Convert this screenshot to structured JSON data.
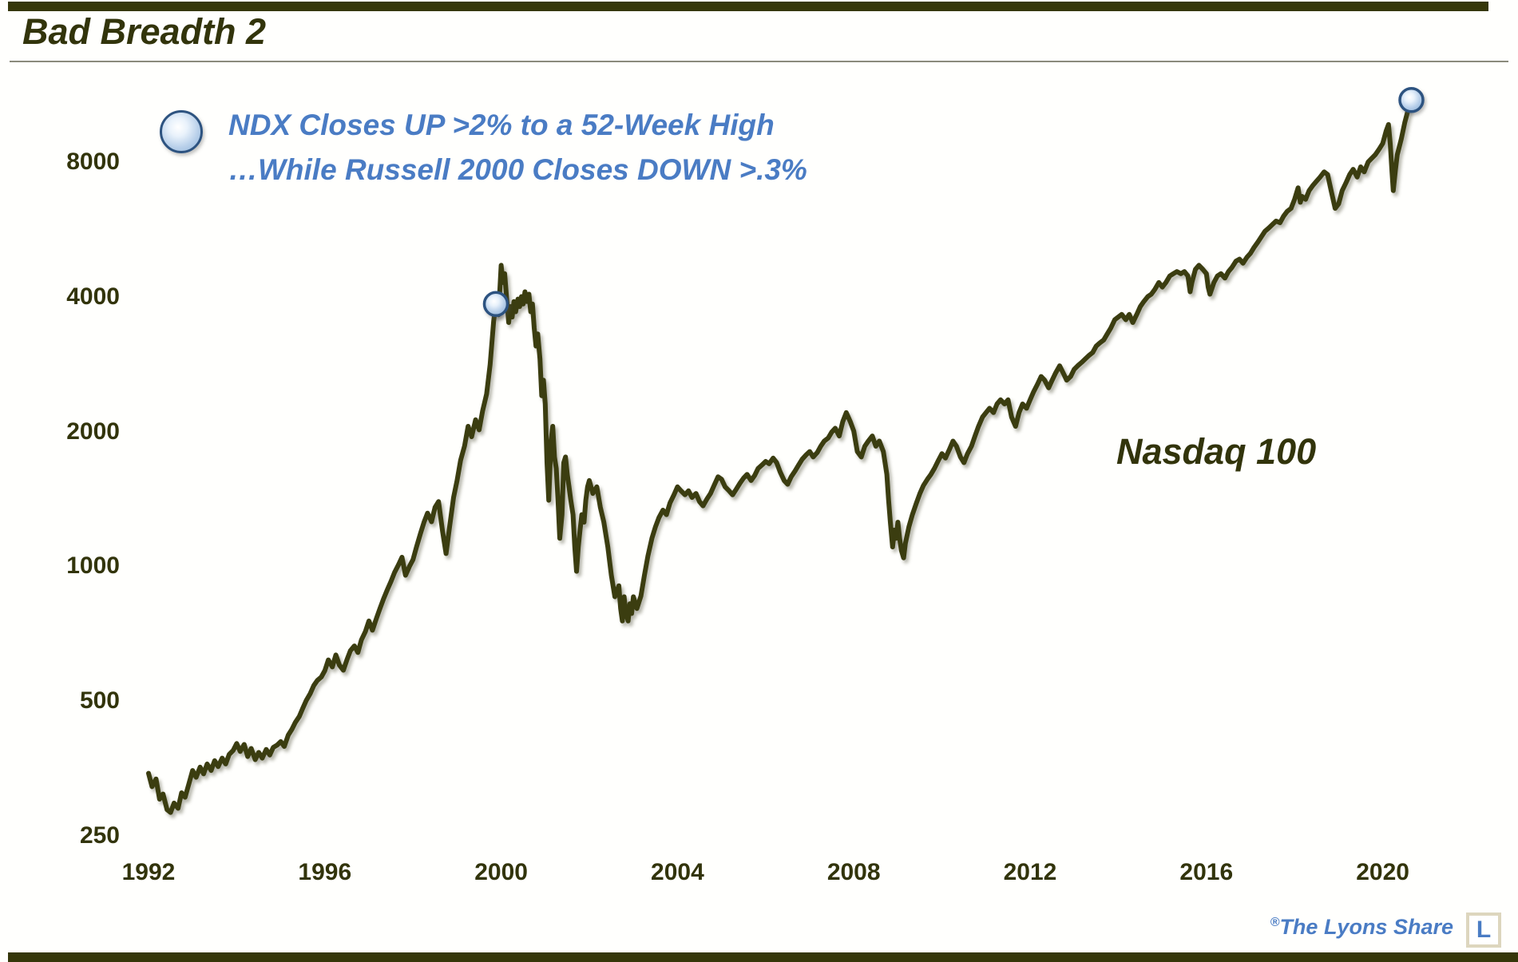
{
  "header": {
    "title": "Bad Breadth 2"
  },
  "annotation": {
    "line1": "NDX Closes UP >2% to a 52-Week High",
    "line2": "…While Russell 2000 Closes DOWN >.3%",
    "marker_symbol": "blue-sphere",
    "color": "#4a7cc4"
  },
  "branding": {
    "reg": "®",
    "name": "The Lyons Share",
    "logo_letter": "L"
  },
  "colors": {
    "olive_dark": "#32340b",
    "line": "#3b3d10",
    "annotation_blue": "#4a7cc4",
    "marker_ring": "#2d5380",
    "marker_fill_light": "#e9f2fb",
    "marker_fill_dark": "#8fb3d9"
  },
  "chart_data": {
    "type": "line",
    "title": "Bad Breadth 2",
    "series_name": "Nasdaq 100",
    "xlabel": "",
    "ylabel": "",
    "x_ticks": [
      1992,
      1996,
      2000,
      2004,
      2008,
      2012,
      2016,
      2020
    ],
    "y_ticks": [
      8000,
      4000,
      2000,
      1000,
      500,
      250
    ],
    "y_scale": "log",
    "xlim": [
      1991.75,
      2021.0
    ],
    "ylim": [
      235,
      11500
    ],
    "grid": false,
    "legend_position": "top-left",
    "markers": [
      {
        "label": "NDX +2% to 52-week high while Russell 2000 down >.3%",
        "point": [
          1999.88,
          3855
        ]
      },
      {
        "label": "NDX +2% to 52-week high while Russell 2000 down >.3%",
        "point": [
          2020.65,
          11005
        ]
      }
    ],
    "points": [
      [
        1992.0,
        345
      ],
      [
        1992.08,
        322
      ],
      [
        1992.17,
        335
      ],
      [
        1992.25,
        302
      ],
      [
        1992.33,
        310
      ],
      [
        1992.42,
        286
      ],
      [
        1992.5,
        282
      ],
      [
        1992.58,
        296
      ],
      [
        1992.67,
        288
      ],
      [
        1992.75,
        312
      ],
      [
        1992.83,
        305
      ],
      [
        1992.92,
        328
      ],
      [
        1993.0,
        350
      ],
      [
        1993.08,
        338
      ],
      [
        1993.17,
        356
      ],
      [
        1993.25,
        344
      ],
      [
        1993.33,
        362
      ],
      [
        1993.42,
        350
      ],
      [
        1993.5,
        368
      ],
      [
        1993.58,
        357
      ],
      [
        1993.67,
        373
      ],
      [
        1993.75,
        362
      ],
      [
        1993.83,
        380
      ],
      [
        1993.92,
        388
      ],
      [
        1994.0,
        402
      ],
      [
        1994.08,
        386
      ],
      [
        1994.17,
        400
      ],
      [
        1994.25,
        376
      ],
      [
        1994.33,
        392
      ],
      [
        1994.42,
        370
      ],
      [
        1994.5,
        384
      ],
      [
        1994.58,
        373
      ],
      [
        1994.67,
        390
      ],
      [
        1994.75,
        379
      ],
      [
        1994.83,
        394
      ],
      [
        1994.92,
        399
      ],
      [
        1995.0,
        406
      ],
      [
        1995.08,
        396
      ],
      [
        1995.17,
        420
      ],
      [
        1995.25,
        432
      ],
      [
        1995.33,
        448
      ],
      [
        1995.42,
        462
      ],
      [
        1995.5,
        482
      ],
      [
        1995.58,
        502
      ],
      [
        1995.67,
        520
      ],
      [
        1995.75,
        542
      ],
      [
        1995.83,
        556
      ],
      [
        1995.92,
        566
      ],
      [
        1996.0,
        585
      ],
      [
        1996.08,
        618
      ],
      [
        1996.17,
        596
      ],
      [
        1996.25,
        634
      ],
      [
        1996.33,
        602
      ],
      [
        1996.42,
        586
      ],
      [
        1996.5,
        618
      ],
      [
        1996.58,
        648
      ],
      [
        1996.67,
        664
      ],
      [
        1996.75,
        642
      ],
      [
        1996.83,
        685
      ],
      [
        1996.92,
        715
      ],
      [
        1997.0,
        755
      ],
      [
        1997.08,
        720
      ],
      [
        1997.17,
        765
      ],
      [
        1997.25,
        805
      ],
      [
        1997.33,
        845
      ],
      [
        1997.42,
        888
      ],
      [
        1997.5,
        925
      ],
      [
        1997.58,
        968
      ],
      [
        1997.67,
        1008
      ],
      [
        1997.75,
        1048
      ],
      [
        1997.83,
        955
      ],
      [
        1997.92,
        1000
      ],
      [
        1998.0,
        1035
      ],
      [
        1998.08,
        1105
      ],
      [
        1998.17,
        1185
      ],
      [
        1998.25,
        1255
      ],
      [
        1998.33,
        1315
      ],
      [
        1998.42,
        1258
      ],
      [
        1998.5,
        1355
      ],
      [
        1998.58,
        1395
      ],
      [
        1998.67,
        1198
      ],
      [
        1998.75,
        1068
      ],
      [
        1998.83,
        1225
      ],
      [
        1998.92,
        1425
      ],
      [
        1999.0,
        1555
      ],
      [
        1999.08,
        1725
      ],
      [
        1999.17,
        1858
      ],
      [
        1999.25,
        2055
      ],
      [
        1999.33,
        1948
      ],
      [
        1999.42,
        2125
      ],
      [
        1999.5,
        2018
      ],
      [
        1999.58,
        2225
      ],
      [
        1999.67,
        2428
      ],
      [
        1999.75,
        2825
      ],
      [
        1999.83,
        3528
      ],
      [
        1999.88,
        3855
      ],
      [
        1999.94,
        3648
      ],
      [
        2000.0,
        4705
      ],
      [
        2000.04,
        4305
      ],
      [
        2000.08,
        4505
      ],
      [
        2000.13,
        3905
      ],
      [
        2000.17,
        3505
      ],
      [
        2000.21,
        3805
      ],
      [
        2000.25,
        3605
      ],
      [
        2000.29,
        3905
      ],
      [
        2000.33,
        3705
      ],
      [
        2000.38,
        3955
      ],
      [
        2000.42,
        3805
      ],
      [
        2000.46,
        4005
      ],
      [
        2000.5,
        3855
      ],
      [
        2000.54,
        4105
      ],
      [
        2000.58,
        3905
      ],
      [
        2000.63,
        4055
      ],
      [
        2000.67,
        3705
      ],
      [
        2000.71,
        3855
      ],
      [
        2000.75,
        3405
      ],
      [
        2000.79,
        3105
      ],
      [
        2000.83,
        3305
      ],
      [
        2000.88,
        2905
      ],
      [
        2000.92,
        2405
      ],
      [
        2000.96,
        2605
      ],
      [
        2001.0,
        2305
      ],
      [
        2001.04,
        1705
      ],
      [
        2001.08,
        1405
      ],
      [
        2001.13,
        1905
      ],
      [
        2001.17,
        2055
      ],
      [
        2001.21,
        1755
      ],
      [
        2001.25,
        1655
      ],
      [
        2001.29,
        1405
      ],
      [
        2001.33,
        1155
      ],
      [
        2001.38,
        1305
      ],
      [
        2001.42,
        1705
      ],
      [
        2001.46,
        1755
      ],
      [
        2001.5,
        1605
      ],
      [
        2001.54,
        1505
      ],
      [
        2001.58,
        1405
      ],
      [
        2001.63,
        1305
      ],
      [
        2001.67,
        1105
      ],
      [
        2001.71,
        975
      ],
      [
        2001.75,
        1105
      ],
      [
        2001.79,
        1205
      ],
      [
        2001.83,
        1305
      ],
      [
        2001.88,
        1255
      ],
      [
        2001.92,
        1405
      ],
      [
        2001.96,
        1505
      ],
      [
        2002.0,
        1555
      ],
      [
        2002.08,
        1455
      ],
      [
        2002.17,
        1505
      ],
      [
        2002.25,
        1355
      ],
      [
        2002.33,
        1255
      ],
      [
        2002.42,
        1105
      ],
      [
        2002.5,
        955
      ],
      [
        2002.58,
        855
      ],
      [
        2002.67,
        905
      ],
      [
        2002.71,
        805
      ],
      [
        2002.75,
        755
      ],
      [
        2002.79,
        855
      ],
      [
        2002.83,
        785
      ],
      [
        2002.88,
        755
      ],
      [
        2002.92,
        825
      ],
      [
        2002.96,
        785
      ],
      [
        2003.0,
        855
      ],
      [
        2003.08,
        805
      ],
      [
        2003.17,
        858
      ],
      [
        2003.25,
        955
      ],
      [
        2003.33,
        1055
      ],
      [
        2003.42,
        1155
      ],
      [
        2003.5,
        1225
      ],
      [
        2003.58,
        1285
      ],
      [
        2003.67,
        1335
      ],
      [
        2003.75,
        1305
      ],
      [
        2003.83,
        1385
      ],
      [
        2003.92,
        1445
      ],
      [
        2004.0,
        1505
      ],
      [
        2004.08,
        1475
      ],
      [
        2004.17,
        1445
      ],
      [
        2004.25,
        1475
      ],
      [
        2004.33,
        1425
      ],
      [
        2004.42,
        1455
      ],
      [
        2004.5,
        1395
      ],
      [
        2004.58,
        1365
      ],
      [
        2004.67,
        1415
      ],
      [
        2004.75,
        1455
      ],
      [
        2004.83,
        1515
      ],
      [
        2004.92,
        1585
      ],
      [
        2005.0,
        1565
      ],
      [
        2005.08,
        1505
      ],
      [
        2005.17,
        1475
      ],
      [
        2005.25,
        1445
      ],
      [
        2005.33,
        1485
      ],
      [
        2005.42,
        1535
      ],
      [
        2005.5,
        1575
      ],
      [
        2005.58,
        1605
      ],
      [
        2005.67,
        1555
      ],
      [
        2005.75,
        1595
      ],
      [
        2005.83,
        1655
      ],
      [
        2005.92,
        1685
      ],
      [
        2006.0,
        1715
      ],
      [
        2006.08,
        1695
      ],
      [
        2006.17,
        1745
      ],
      [
        2006.25,
        1705
      ],
      [
        2006.33,
        1625
      ],
      [
        2006.42,
        1555
      ],
      [
        2006.5,
        1525
      ],
      [
        2006.58,
        1585
      ],
      [
        2006.67,
        1635
      ],
      [
        2006.75,
        1685
      ],
      [
        2006.83,
        1735
      ],
      [
        2006.92,
        1775
      ],
      [
        2007.0,
        1805
      ],
      [
        2007.08,
        1755
      ],
      [
        2007.17,
        1795
      ],
      [
        2007.25,
        1855
      ],
      [
        2007.33,
        1905
      ],
      [
        2007.42,
        1935
      ],
      [
        2007.5,
        1995
      ],
      [
        2007.58,
        2035
      ],
      [
        2007.67,
        1955
      ],
      [
        2007.75,
        2105
      ],
      [
        2007.83,
        2205
      ],
      [
        2007.92,
        2105
      ],
      [
        2008.0,
        2005
      ],
      [
        2008.08,
        1805
      ],
      [
        2008.17,
        1755
      ],
      [
        2008.25,
        1855
      ],
      [
        2008.33,
        1905
      ],
      [
        2008.42,
        1955
      ],
      [
        2008.5,
        1855
      ],
      [
        2008.58,
        1905
      ],
      [
        2008.67,
        1805
      ],
      [
        2008.75,
        1605
      ],
      [
        2008.79,
        1405
      ],
      [
        2008.83,
        1255
      ],
      [
        2008.88,
        1105
      ],
      [
        2008.92,
        1205
      ],
      [
        2008.96,
        1155
      ],
      [
        2009.0,
        1255
      ],
      [
        2009.04,
        1155
      ],
      [
        2009.08,
        1085
      ],
      [
        2009.13,
        1045
      ],
      [
        2009.17,
        1125
      ],
      [
        2009.25,
        1225
      ],
      [
        2009.33,
        1305
      ],
      [
        2009.42,
        1385
      ],
      [
        2009.5,
        1455
      ],
      [
        2009.58,
        1515
      ],
      [
        2009.67,
        1565
      ],
      [
        2009.75,
        1605
      ],
      [
        2009.83,
        1655
      ],
      [
        2009.92,
        1725
      ],
      [
        2010.0,
        1785
      ],
      [
        2010.08,
        1745
      ],
      [
        2010.17,
        1825
      ],
      [
        2010.25,
        1905
      ],
      [
        2010.33,
        1855
      ],
      [
        2010.42,
        1755
      ],
      [
        2010.5,
        1705
      ],
      [
        2010.58,
        1785
      ],
      [
        2010.67,
        1855
      ],
      [
        2010.75,
        1955
      ],
      [
        2010.83,
        2055
      ],
      [
        2010.92,
        2155
      ],
      [
        2011.0,
        2205
      ],
      [
        2011.08,
        2255
      ],
      [
        2011.17,
        2205
      ],
      [
        2011.25,
        2305
      ],
      [
        2011.33,
        2355
      ],
      [
        2011.42,
        2305
      ],
      [
        2011.5,
        2355
      ],
      [
        2011.58,
        2155
      ],
      [
        2011.67,
        2055
      ],
      [
        2011.75,
        2205
      ],
      [
        2011.83,
        2305
      ],
      [
        2011.92,
        2255
      ],
      [
        2012.0,
        2355
      ],
      [
        2012.08,
        2455
      ],
      [
        2012.17,
        2555
      ],
      [
        2012.25,
        2655
      ],
      [
        2012.33,
        2605
      ],
      [
        2012.42,
        2505
      ],
      [
        2012.5,
        2605
      ],
      [
        2012.58,
        2705
      ],
      [
        2012.67,
        2805
      ],
      [
        2012.75,
        2705
      ],
      [
        2012.83,
        2605
      ],
      [
        2012.92,
        2655
      ],
      [
        2013.0,
        2755
      ],
      [
        2013.08,
        2805
      ],
      [
        2013.17,
        2855
      ],
      [
        2013.25,
        2905
      ],
      [
        2013.33,
        2955
      ],
      [
        2013.42,
        3005
      ],
      [
        2013.5,
        3105
      ],
      [
        2013.58,
        3155
      ],
      [
        2013.67,
        3205
      ],
      [
        2013.75,
        3305
      ],
      [
        2013.83,
        3405
      ],
      [
        2013.92,
        3555
      ],
      [
        2014.0,
        3605
      ],
      [
        2014.08,
        3655
      ],
      [
        2014.17,
        3555
      ],
      [
        2014.25,
        3655
      ],
      [
        2014.33,
        3505
      ],
      [
        2014.42,
        3655
      ],
      [
        2014.5,
        3805
      ],
      [
        2014.58,
        3905
      ],
      [
        2014.67,
        4005
      ],
      [
        2014.75,
        4055
      ],
      [
        2014.83,
        4155
      ],
      [
        2014.92,
        4305
      ],
      [
        2015.0,
        4205
      ],
      [
        2015.08,
        4305
      ],
      [
        2015.17,
        4455
      ],
      [
        2015.25,
        4505
      ],
      [
        2015.33,
        4555
      ],
      [
        2015.42,
        4505
      ],
      [
        2015.5,
        4555
      ],
      [
        2015.58,
        4455
      ],
      [
        2015.63,
        4105
      ],
      [
        2015.67,
        4305
      ],
      [
        2015.75,
        4605
      ],
      [
        2015.83,
        4705
      ],
      [
        2015.92,
        4605
      ],
      [
        2016.0,
        4505
      ],
      [
        2016.04,
        4205
      ],
      [
        2016.08,
        4055
      ],
      [
        2016.17,
        4305
      ],
      [
        2016.25,
        4455
      ],
      [
        2016.33,
        4505
      ],
      [
        2016.42,
        4405
      ],
      [
        2016.5,
        4555
      ],
      [
        2016.58,
        4655
      ],
      [
        2016.67,
        4805
      ],
      [
        2016.75,
        4855
      ],
      [
        2016.83,
        4755
      ],
      [
        2016.92,
        4905
      ],
      [
        2017.0,
        5005
      ],
      [
        2017.08,
        5155
      ],
      [
        2017.17,
        5305
      ],
      [
        2017.25,
        5455
      ],
      [
        2017.33,
        5605
      ],
      [
        2017.42,
        5705
      ],
      [
        2017.5,
        5805
      ],
      [
        2017.58,
        5905
      ],
      [
        2017.67,
        5855
      ],
      [
        2017.75,
        6055
      ],
      [
        2017.83,
        6205
      ],
      [
        2017.92,
        6305
      ],
      [
        2018.0,
        6605
      ],
      [
        2018.08,
        7005
      ],
      [
        2018.13,
        6505
      ],
      [
        2018.17,
        6705
      ],
      [
        2018.25,
        6605
      ],
      [
        2018.33,
        6905
      ],
      [
        2018.42,
        7105
      ],
      [
        2018.5,
        7255
      ],
      [
        2018.58,
        7405
      ],
      [
        2018.67,
        7605
      ],
      [
        2018.75,
        7505
      ],
      [
        2018.83,
        6905
      ],
      [
        2018.92,
        6305
      ],
      [
        2019.0,
        6455
      ],
      [
        2019.08,
        6905
      ],
      [
        2019.17,
        7205
      ],
      [
        2019.25,
        7505
      ],
      [
        2019.33,
        7705
      ],
      [
        2019.42,
        7405
      ],
      [
        2019.5,
        7805
      ],
      [
        2019.58,
        7605
      ],
      [
        2019.67,
        8005
      ],
      [
        2019.75,
        8155
      ],
      [
        2019.83,
        8305
      ],
      [
        2019.92,
        8555
      ],
      [
        2020.0,
        8805
      ],
      [
        2020.08,
        9405
      ],
      [
        2020.13,
        9705
      ],
      [
        2020.17,
        8805
      ],
      [
        2020.21,
        7605
      ],
      [
        2020.24,
        6905
      ],
      [
        2020.29,
        7705
      ],
      [
        2020.33,
        8305
      ],
      [
        2020.42,
        9005
      ],
      [
        2020.5,
        9805
      ],
      [
        2020.58,
        10505
      ],
      [
        2020.65,
        11005
      ]
    ]
  }
}
